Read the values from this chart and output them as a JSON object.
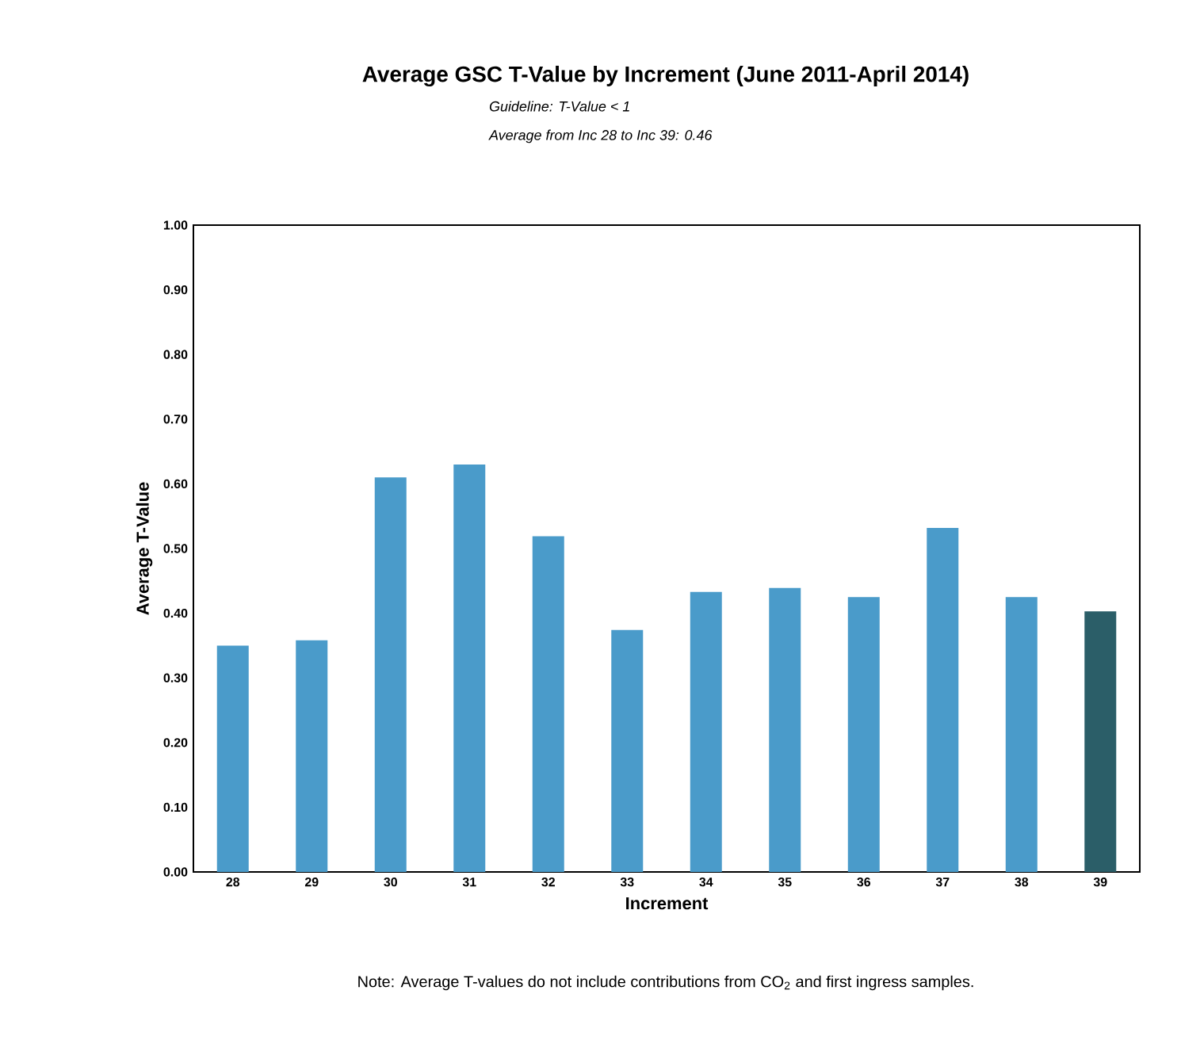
{
  "chart_data": {
    "type": "bar",
    "title": "Average GSC T-Value by Increment (June 2011-April 2014)",
    "subtitle": "Guideline: T-Value < 1",
    "annotations": [
      "Average from Inc 28 to Inc 39:   0.46",
      "Note:  Average T-values do not include contributions from CO$_{2}$ and first ingress samples."
    ],
    "xlabel": "Increment",
    "ylabel": "Average T-Value",
    "categories": [
      "28",
      "29",
      "30",
      "31",
      "32",
      "33",
      "34",
      "35",
      "36",
      "37",
      "38",
      "39"
    ],
    "values": [
      0.35,
      0.358,
      0.61,
      0.63,
      0.519,
      0.374,
      0.433,
      0.439,
      0.425,
      0.532,
      0.425,
      0.403
    ],
    "colors": [
      "#4a9bca",
      "#4a9bca",
      "#4a9bca",
      "#4a9bca",
      "#4a9bca",
      "#4a9bca",
      "#4a9bca",
      "#4a9bca",
      "#4a9bca",
      "#4a9bca",
      "#4a9bca",
      "#2b5e68"
    ],
    "ylim": [
      0,
      1
    ],
    "yticks": [
      {
        "value": 0,
        "label": "0.00"
      },
      {
        "value": 0.1,
        "label": "0.10"
      },
      {
        "value": 0.2,
        "label": "0.20"
      },
      {
        "value": 0.3,
        "label": "0.30"
      },
      {
        "value": 0.4,
        "label": "0.40"
      },
      {
        "value": 0.5,
        "label": "0.50"
      },
      {
        "value": 0.6,
        "label": "0.60"
      },
      {
        "value": 0.7,
        "label": "0.70"
      },
      {
        "value": 0.8,
        "label": "0.80"
      },
      {
        "value": 0.9,
        "label": "0.90"
      },
      {
        "value": 1,
        "label": "1.00"
      }
    ],
    "grid": false
  }
}
